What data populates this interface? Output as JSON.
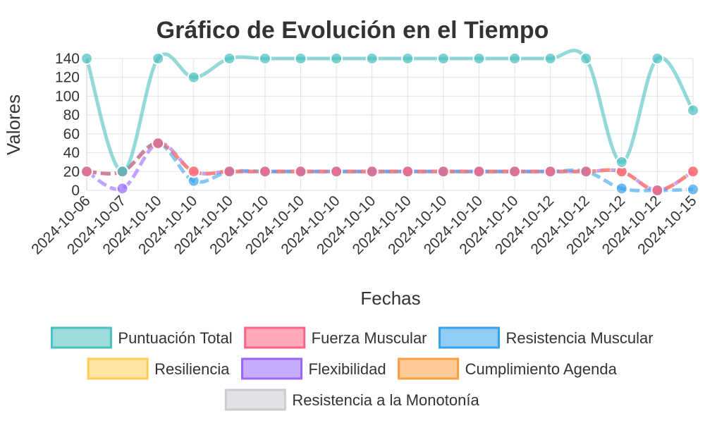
{
  "chart_data": {
    "type": "line",
    "title": "Gráfico de Evolución en el Tiempo",
    "xlabel": "Fechas",
    "ylabel": "Valores",
    "ylim": [
      0,
      140
    ],
    "yticks": [
      0,
      20,
      40,
      60,
      80,
      100,
      120,
      140
    ],
    "grid": true,
    "legend_position": "bottom",
    "categories": [
      "2024-10-06",
      "2024-10-07",
      "2024-10-10",
      "2024-10-10",
      "2024-10-10",
      "2024-10-10",
      "2024-10-10",
      "2024-10-10",
      "2024-10-10",
      "2024-10-10",
      "2024-10-10",
      "2024-10-10",
      "2024-10-10",
      "2024-10-12",
      "2024-10-12",
      "2024-10-12",
      "2024-10-12",
      "2024-10-15"
    ],
    "series": [
      {
        "name": "Puntuación Total",
        "color": "#4bc0c0",
        "values": [
          140,
          20,
          140,
          120,
          140,
          140,
          140,
          140,
          140,
          140,
          140,
          140,
          140,
          140,
          140,
          30,
          140,
          85
        ]
      },
      {
        "name": "Fuerza Muscular",
        "color": "#ff6384",
        "values": [
          20,
          20,
          50,
          20,
          20,
          20,
          20,
          20,
          20,
          20,
          20,
          20,
          20,
          20,
          20,
          20,
          0,
          20
        ]
      },
      {
        "name": "Resistencia Muscular",
        "color": "#36a2eb",
        "values": [
          20,
          20,
          50,
          10,
          20,
          20,
          20,
          20,
          20,
          20,
          20,
          20,
          20,
          20,
          20,
          2,
          0,
          1
        ]
      },
      {
        "name": "Resiliencia",
        "color": "#ffcd56",
        "values": [
          20,
          20,
          50,
          20,
          20,
          20,
          20,
          20,
          20,
          20,
          20,
          20,
          20,
          20,
          20,
          20,
          0,
          20
        ]
      },
      {
        "name": "Flexibilidad",
        "color": "#9966ff",
        "values": [
          20,
          2,
          50,
          20,
          20,
          20,
          20,
          20,
          20,
          20,
          20,
          20,
          20,
          20,
          20,
          20,
          0,
          20
        ]
      },
      {
        "name": "Cumplimiento Agenda",
        "color": "#ff9f40",
        "values": [
          20,
          20,
          50,
          20,
          20,
          20,
          20,
          20,
          20,
          20,
          20,
          20,
          20,
          20,
          20,
          20,
          0,
          20
        ]
      },
      {
        "name": "Resistencia a la Monotonía",
        "color": "#c9cbcf",
        "values": [
          20,
          20,
          50,
          20,
          20,
          20,
          20,
          20,
          20,
          20,
          20,
          20,
          20,
          20,
          20,
          20,
          0,
          20
        ]
      }
    ]
  }
}
